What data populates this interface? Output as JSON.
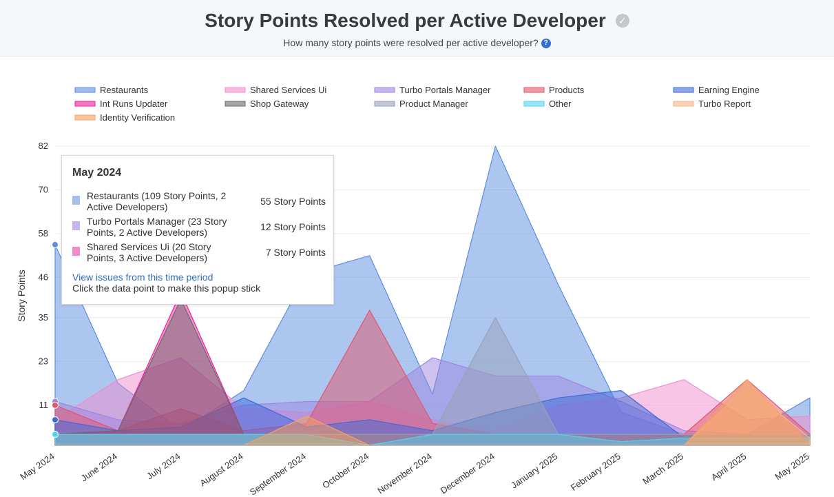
{
  "header": {
    "title": "Story Points Resolved per Active Developer",
    "subtitle": "How many story points were resolved per active developer?"
  },
  "tooltip": {
    "title": "May 2024",
    "rows": [
      {
        "label": "Restaurants (109 Story Points, 2 Active Developers)",
        "value": "55 Story Points",
        "color": "#a4bfee"
      },
      {
        "label": "Turbo Portals Manager  (23 Story Points, 2 Active Developers)",
        "value": "12 Story Points",
        "color": "#c3b3ef"
      },
      {
        "label": "Shared Services Ui (20 Story Points, 3 Active Developers)",
        "value": "7 Story Points",
        "color": "#f08ccd"
      }
    ],
    "link": "View issues from this time period",
    "note": "Click the data point to make this popup stick"
  },
  "chart_data": {
    "type": "area",
    "ylabel": "Story Points",
    "ylim": [
      0,
      82
    ],
    "yticks": [
      11,
      23,
      35,
      46,
      58,
      70,
      82
    ],
    "grid": true,
    "legend_position": "top",
    "categories": [
      "May 2024",
      "June 2024",
      "July 2024",
      "August 2024",
      "September 2024",
      "October 2024",
      "November 2024",
      "December 2024",
      "January 2025",
      "February 2025",
      "March 2025",
      "April 2025",
      "May 2025"
    ],
    "series": [
      {
        "name": "Restaurants",
        "color": "#5b8de0",
        "values": [
          55,
          17,
          4,
          15,
          47,
          52,
          14,
          82,
          44,
          9,
          3,
          3,
          13
        ]
      },
      {
        "name": "Shared Services Ui",
        "color": "#f08ccd",
        "values": [
          7,
          18,
          24,
          10,
          9,
          12,
          7,
          4,
          11,
          13,
          18,
          7,
          8
        ]
      },
      {
        "name": "Turbo Portals Manager",
        "color": "#9d86e0",
        "values": [
          12,
          7,
          6,
          11,
          12,
          12,
          24,
          19,
          19,
          12,
          4,
          3,
          3
        ]
      },
      {
        "name": "Products",
        "color": "#e0566a",
        "values": [
          11,
          4,
          10,
          4,
          6,
          37,
          6,
          3,
          3,
          2,
          3,
          18,
          3
        ]
      },
      {
        "name": "Earning Engine",
        "color": "#3e6ad8",
        "values": [
          7,
          4,
          5,
          13,
          5,
          7,
          4,
          9,
          13,
          15,
          2,
          2,
          2
        ]
      },
      {
        "name": "Int Runs Updater",
        "color": "#e8229e",
        "values": [
          3,
          4,
          42,
          3,
          3,
          3,
          3,
          3,
          3,
          3,
          3,
          3,
          3
        ]
      },
      {
        "name": "Shop Gateway",
        "color": "#6b6b6b",
        "values": [
          3,
          4,
          40,
          3,
          3,
          3,
          3,
          3,
          3,
          3,
          3,
          3,
          3
        ]
      },
      {
        "name": "Product Manager",
        "color": "#98a2b8",
        "values": [
          3,
          3,
          3,
          3,
          3,
          3,
          3,
          35,
          3,
          3,
          3,
          3,
          3
        ]
      },
      {
        "name": "Other",
        "color": "#55d2ee",
        "values": [
          3,
          3,
          3,
          3,
          3,
          0,
          3,
          3,
          3,
          1,
          2,
          2,
          2
        ]
      },
      {
        "name": "Turbo Report",
        "color": "#f6b48a",
        "values": [
          0,
          0,
          0,
          0,
          0,
          0,
          0,
          0,
          0,
          0,
          0,
          16,
          2
        ]
      },
      {
        "name": "Identity Verification",
        "color": "#f5a15e",
        "values": [
          0,
          0,
          0,
          0,
          8,
          0,
          0,
          0,
          0,
          0,
          0,
          18,
          0
        ]
      }
    ],
    "legend_order": [
      "Restaurants",
      "Shared Services Ui",
      "Turbo Portals Manager",
      "Products",
      "Earning Engine",
      "Int Runs Updater",
      "Shop Gateway",
      "Product Manager",
      "Other",
      "Turbo Report",
      "Identity Verification"
    ]
  }
}
